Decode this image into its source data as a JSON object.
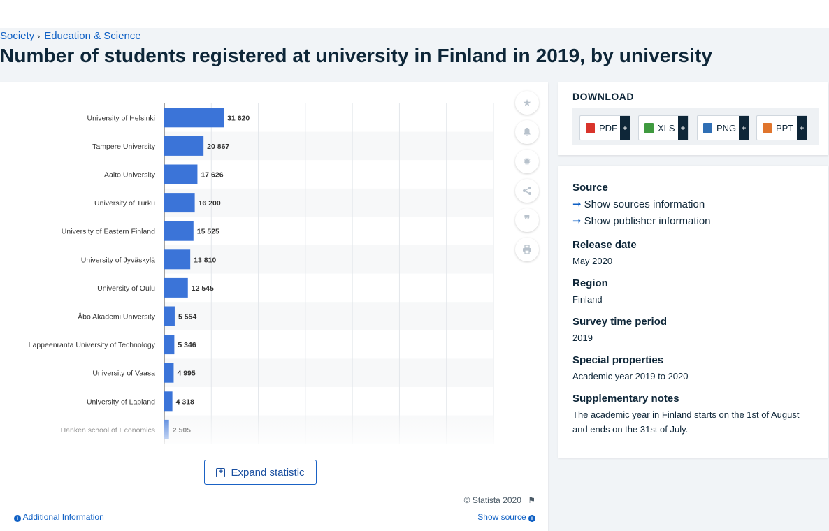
{
  "breadcrumb": {
    "item1": "Society",
    "item2": "Education & Science"
  },
  "page_title": "Number of students registered at university in Finland in 2019, by university",
  "chart_data": {
    "type": "bar",
    "orientation": "horizontal",
    "categories": [
      "University of Helsinki",
      "Tampere University",
      "Aalto University",
      "University of Turku",
      "University of Eastern Finland",
      "University of Jyväskylä",
      "University of Oulu",
      "Åbo Akademi University",
      "Lappeenranta University of Technology",
      "University of Vaasa",
      "University of Lapland",
      "Hanken school of Economics"
    ],
    "values": [
      31620,
      20867,
      17626,
      16200,
      15525,
      13810,
      12545,
      5554,
      5346,
      4995,
      4318,
      2505
    ],
    "value_labels": [
      "31 620",
      "20 867",
      "17 626",
      "16 200",
      "15 525",
      "13 810",
      "12 545",
      "5 554",
      "5 346",
      "4 995",
      "4 318",
      "2 505"
    ],
    "xlim": [
      0,
      175000
    ],
    "grid": true,
    "bar_color": "#3b74d8"
  },
  "chart_actions": {
    "expand_label": "Expand statistic",
    "copyright": "© Statista 2020",
    "additional_info": "Additional Information",
    "show_source": "Show source"
  },
  "download": {
    "title": "DOWNLOAD",
    "buttons": [
      {
        "label": "PDF",
        "icon": "pdf-file-icon",
        "color": "#d9342b"
      },
      {
        "label": "XLS",
        "icon": "xls-file-icon",
        "color": "#3f9a3f"
      },
      {
        "label": "PNG",
        "icon": "png-file-icon",
        "color": "#2f6fb5"
      },
      {
        "label": "PPT",
        "icon": "ppt-file-icon",
        "color": "#e0752d"
      }
    ],
    "plus": "+"
  },
  "meta": {
    "source_heading": "Source",
    "show_sources": "Show sources information",
    "show_publisher": "Show publisher information",
    "release_date_heading": "Release date",
    "release_date": "May 2020",
    "region_heading": "Region",
    "region": "Finland",
    "survey_period_heading": "Survey time period",
    "survey_period": "2019",
    "special_heading": "Special properties",
    "special": "Academic year 2019 to 2020",
    "notes_heading": "Supplementary notes",
    "notes": "The academic year in Finland starts on the 1st of August and ends on the 31st of July."
  }
}
